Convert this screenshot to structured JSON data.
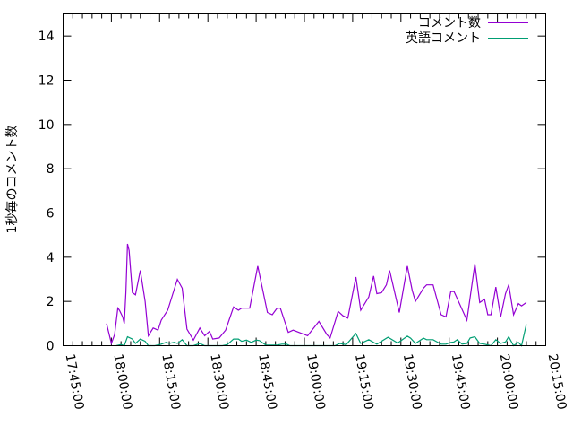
{
  "chart_data": {
    "type": "line",
    "title": "",
    "xlabel": "",
    "ylabel": "1秒毎のコメント数",
    "xlim": [
      "17:45:00",
      "20:15:00"
    ],
    "ylim": [
      0,
      15
    ],
    "x_ticks": [
      "17:45:00",
      "18:00:00",
      "18:15:00",
      "18:30:00",
      "18:45:00",
      "19:00:00",
      "19:15:00",
      "19:30:00",
      "19:45:00",
      "20:00:00",
      "20:15:00"
    ],
    "y_ticks": [
      "0",
      "2",
      "4",
      "6",
      "8",
      "10",
      "12",
      "14"
    ],
    "grid": false,
    "legend_position": "top-right",
    "series": [
      {
        "name": "コメント数",
        "color": "#9400d3",
        "points": [
          [
            "17:58:30",
            1.0
          ],
          [
            "18:00:00",
            0.1
          ],
          [
            "18:01:00",
            0.5
          ],
          [
            "18:02:00",
            1.7
          ],
          [
            "18:02:30",
            1.6
          ],
          [
            "18:03:30",
            1.3
          ],
          [
            "18:04:00",
            1.0
          ],
          [
            "18:04:30",
            2.4
          ],
          [
            "18:05:00",
            4.6
          ],
          [
            "18:05:30",
            4.3
          ],
          [
            "18:06:30",
            2.4
          ],
          [
            "18:07:30",
            2.3
          ],
          [
            "18:09:00",
            3.4
          ],
          [
            "18:10:30",
            2.0
          ],
          [
            "18:11:30",
            0.45
          ],
          [
            "18:13:00",
            0.8
          ],
          [
            "18:14:30",
            0.7
          ],
          [
            "18:15:30",
            1.15
          ],
          [
            "18:17:30",
            1.6
          ],
          [
            "18:20:30",
            3.0
          ],
          [
            "18:22:00",
            2.6
          ],
          [
            "18:23:30",
            0.75
          ],
          [
            "18:25:30",
            0.25
          ],
          [
            "18:27:30",
            0.8
          ],
          [
            "18:29:00",
            0.45
          ],
          [
            "18:30:30",
            0.65
          ],
          [
            "18:31:30",
            0.3
          ],
          [
            "18:33:30",
            0.35
          ],
          [
            "18:35:30",
            0.7
          ],
          [
            "18:38:00",
            1.75
          ],
          [
            "18:39:30",
            1.6
          ],
          [
            "18:40:30",
            1.7
          ],
          [
            "18:43:00",
            1.7
          ],
          [
            "18:45:30",
            3.6
          ],
          [
            "18:48:30",
            1.5
          ],
          [
            "18:50:00",
            1.4
          ],
          [
            "18:51:30",
            1.7
          ],
          [
            "18:52:30",
            1.7
          ],
          [
            "18:55:00",
            0.6
          ],
          [
            "18:56:30",
            0.7
          ],
          [
            "19:01:00",
            0.45
          ],
          [
            "19:04:30",
            1.1
          ],
          [
            "19:07:00",
            0.5
          ],
          [
            "19:08:00",
            0.35
          ],
          [
            "19:10:30",
            1.55
          ],
          [
            "19:12:00",
            1.35
          ],
          [
            "19:13:30",
            1.25
          ],
          [
            "19:16:00",
            3.1
          ],
          [
            "19:17:30",
            1.6
          ],
          [
            "19:20:00",
            2.2
          ],
          [
            "19:21:30",
            3.15
          ],
          [
            "19:22:30",
            2.35
          ],
          [
            "19:24:00",
            2.4
          ],
          [
            "19:25:30",
            2.75
          ],
          [
            "19:26:30",
            3.4
          ],
          [
            "19:29:30",
            1.5
          ],
          [
            "19:32:00",
            3.6
          ],
          [
            "19:33:30",
            2.5
          ],
          [
            "19:34:30",
            2.0
          ],
          [
            "19:37:00",
            2.6
          ],
          [
            "19:38:00",
            2.75
          ],
          [
            "19:40:00",
            2.75
          ],
          [
            "19:42:30",
            1.4
          ],
          [
            "19:44:00",
            1.3
          ],
          [
            "19:45:30",
            2.45
          ],
          [
            "19:46:30",
            2.45
          ],
          [
            "19:50:30",
            1.15
          ],
          [
            "19:53:00",
            3.7
          ],
          [
            "19:54:30",
            1.95
          ],
          [
            "19:56:00",
            2.1
          ],
          [
            "19:57:00",
            1.4
          ],
          [
            "19:58:00",
            1.4
          ],
          [
            "19:59:30",
            2.65
          ],
          [
            "20:01:00",
            1.3
          ],
          [
            "20:02:30",
            2.35
          ],
          [
            "20:03:30",
            2.75
          ],
          [
            "20:05:00",
            1.4
          ],
          [
            "20:06:30",
            1.9
          ],
          [
            "20:07:30",
            1.8
          ],
          [
            "20:09:00",
            1.95
          ]
        ]
      },
      {
        "name": "英語コメント",
        "color": "#009e73",
        "points": [
          [
            "18:01:30",
            0.0
          ],
          [
            "18:03:00",
            0.05
          ],
          [
            "18:04:00",
            0.0
          ],
          [
            "18:05:00",
            0.4
          ],
          [
            "18:06:30",
            0.3
          ],
          [
            "18:07:30",
            0.1
          ],
          [
            "18:09:00",
            0.3
          ],
          [
            "18:10:30",
            0.2
          ],
          [
            "18:11:30",
            0.0
          ],
          [
            "18:13:30",
            0.0
          ],
          [
            "18:15:30",
            0.07
          ],
          [
            "18:17:00",
            0.15
          ],
          [
            "18:18:00",
            0.1
          ],
          [
            "18:19:30",
            0.15
          ],
          [
            "18:20:30",
            0.1
          ],
          [
            "18:22:00",
            0.27
          ],
          [
            "18:23:30",
            0.0
          ],
          [
            "18:25:30",
            0.0
          ],
          [
            "18:27:30",
            0.1
          ],
          [
            "18:29:00",
            0.0
          ],
          [
            "18:30:00",
            0.0
          ],
          [
            "18:34:30",
            0.0
          ],
          [
            "18:36:00",
            0.05
          ],
          [
            "18:38:00",
            0.3
          ],
          [
            "18:39:30",
            0.3
          ],
          [
            "18:40:30",
            0.2
          ],
          [
            "18:42:00",
            0.25
          ],
          [
            "18:43:30",
            0.15
          ],
          [
            "18:45:00",
            0.25
          ],
          [
            "18:46:00",
            0.23
          ],
          [
            "18:48:00",
            0.03
          ],
          [
            "18:51:30",
            0.03
          ],
          [
            "18:53:00",
            0.07
          ],
          [
            "18:54:30",
            0.07
          ],
          [
            "18:55:30",
            0.0
          ],
          [
            "19:02:30",
            0.0
          ],
          [
            "19:09:30",
            0.0
          ],
          [
            "19:11:00",
            0.1
          ],
          [
            "19:13:00",
            0.05
          ],
          [
            "19:16:00",
            0.55
          ],
          [
            "19:17:30",
            0.1
          ],
          [
            "19:20:00",
            0.27
          ],
          [
            "19:22:30",
            0.07
          ],
          [
            "19:26:00",
            0.38
          ],
          [
            "19:29:00",
            0.12
          ],
          [
            "19:32:00",
            0.43
          ],
          [
            "19:33:00",
            0.34
          ],
          [
            "19:34:30",
            0.1
          ],
          [
            "19:37:00",
            0.34
          ],
          [
            "19:38:00",
            0.27
          ],
          [
            "19:40:00",
            0.27
          ],
          [
            "19:42:30",
            0.07
          ],
          [
            "19:44:00",
            0.07
          ],
          [
            "19:45:30",
            0.15
          ],
          [
            "19:46:30",
            0.17
          ],
          [
            "19:47:30",
            0.27
          ],
          [
            "19:49:00",
            0.07
          ],
          [
            "19:50:30",
            0.1
          ],
          [
            "19:51:30",
            0.35
          ],
          [
            "19:53:00",
            0.4
          ],
          [
            "19:54:30",
            0.1
          ],
          [
            "19:56:00",
            0.07
          ],
          [
            "19:58:00",
            0.0
          ],
          [
            "19:59:30",
            0.27
          ],
          [
            "20:01:00",
            0.1
          ],
          [
            "20:02:30",
            0.17
          ],
          [
            "20:03:30",
            0.4
          ],
          [
            "20:05:00",
            0.0
          ],
          [
            "20:06:30",
            0.15
          ],
          [
            "20:07:30",
            0.0
          ],
          [
            "20:09:00",
            0.97
          ]
        ]
      }
    ]
  }
}
